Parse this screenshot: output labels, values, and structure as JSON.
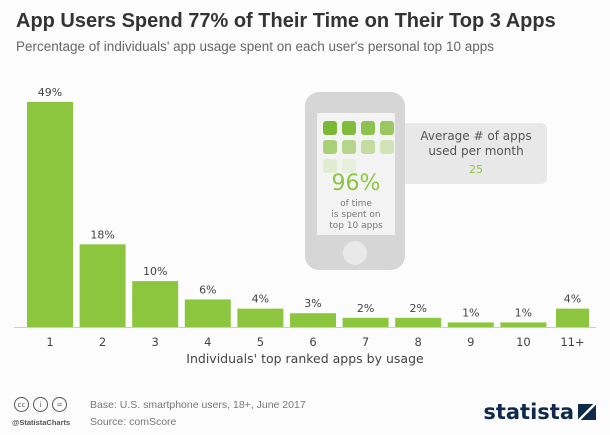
{
  "title": "App Users Spend 77% of Their Time on Their Top 3 Apps",
  "subtitle": "Percentage of individuals' app usage spent on each user's personal top 10 apps",
  "chart_data": {
    "type": "bar",
    "categories": [
      "1",
      "2",
      "3",
      "4",
      "5",
      "6",
      "7",
      "8",
      "9",
      "10",
      "11+"
    ],
    "values": [
      49,
      18,
      10,
      6,
      4,
      3,
      2,
      2,
      1,
      1,
      4
    ],
    "value_labels": [
      "49%",
      "18%",
      "10%",
      "6%",
      "4%",
      "3%",
      "2%",
      "2%",
      "1%",
      "1%",
      "4%"
    ],
    "xlabel": "Individuals' top ranked apps by usage",
    "ylabel": "",
    "ylim": [
      0,
      50
    ],
    "grid": false,
    "bar_color": "#8cc63f"
  },
  "infographic": {
    "percent": "96%",
    "line1": "of time",
    "line2": "is spent on",
    "line3": "top 10 apps",
    "callout_line1": "Average # of apps",
    "callout_line2": "used per month",
    "callout_value": "25"
  },
  "footer": {
    "base": "Base: U.S. smartphone users, 18+, June 2017",
    "source": "Source: comScore",
    "handle": "@StatistaCharts",
    "logo": "statista",
    "license_icons": [
      "cc",
      "by",
      "nd"
    ]
  }
}
